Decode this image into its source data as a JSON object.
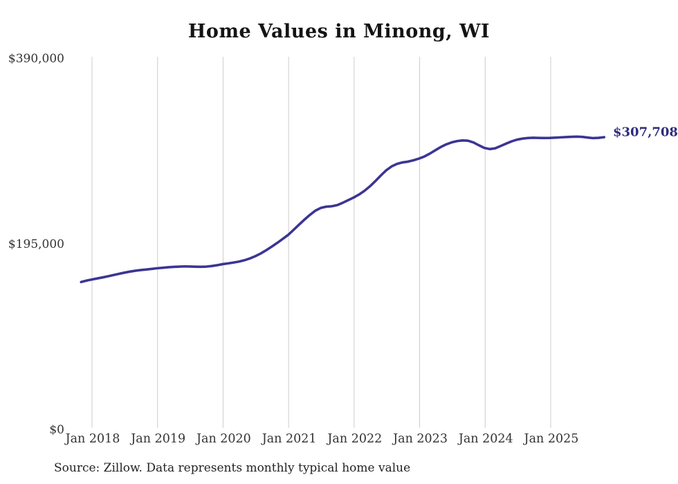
{
  "title": "Home Values in Minong, WI",
  "source_note": "Source: Zillow. Data represents monthly typical home value",
  "current_value_label": "$307,708",
  "colors": {
    "line": "#3b3594",
    "value_label": "#2e2c7d",
    "grid": "#cccccc",
    "axis_text": "#333333",
    "title_text": "#141414",
    "source_text": "#222222",
    "background": "#ffffff"
  },
  "chart_data": {
    "type": "line",
    "title": "Home Values in Minong, WI",
    "xlabel": "",
    "ylabel": "",
    "grid": "vertical-only",
    "legend": "none",
    "ylim": [
      0,
      390000
    ],
    "y_ticks": [
      {
        "label": "$0",
        "value": 0
      },
      {
        "label": "$195,000",
        "value": 195000
      },
      {
        "label": "$390,000",
        "value": 390000
      }
    ],
    "x_tick_labels": [
      "Jan 2018",
      "Jan 2019",
      "Jan 2020",
      "Jan 2021",
      "Jan 2022",
      "Jan 2023",
      "Jan 2024",
      "Jan 2025"
    ],
    "series_start": "Nov 2017",
    "series_end": "Nov 2025",
    "series": [
      {
        "name": "Monthly typical home value",
        "values": [
          155500,
          157000,
          158200,
          159300,
          160400,
          161600,
          162900,
          164200,
          165400,
          166500,
          167400,
          168100,
          168700,
          169300,
          170000,
          170500,
          171000,
          171400,
          171700,
          171900,
          171800,
          171600,
          171500,
          171700,
          172300,
          173200,
          174300,
          175100,
          176000,
          177000,
          178400,
          180300,
          182700,
          185600,
          189000,
          192700,
          196600,
          200800,
          205000,
          210300,
          215800,
          221100,
          226100,
          230500,
          233400,
          234700,
          235100,
          236300,
          238700,
          241500,
          244200,
          247400,
          251300,
          256000,
          261500,
          267400,
          272900,
          277000,
          279700,
          281200,
          282000,
          283400,
          285200,
          287400,
          290400,
          293900,
          297300,
          300100,
          302200,
          303600,
          304300,
          304000,
          302200,
          299200,
          296400,
          295200,
          296000,
          298400,
          300900,
          303300,
          305100,
          306200,
          306800,
          307100,
          306900,
          306800,
          306900,
          307200,
          307500,
          307800,
          308100,
          308300,
          308000,
          307300,
          306700,
          307000,
          307708
        ]
      }
    ],
    "end_value": 307708
  }
}
